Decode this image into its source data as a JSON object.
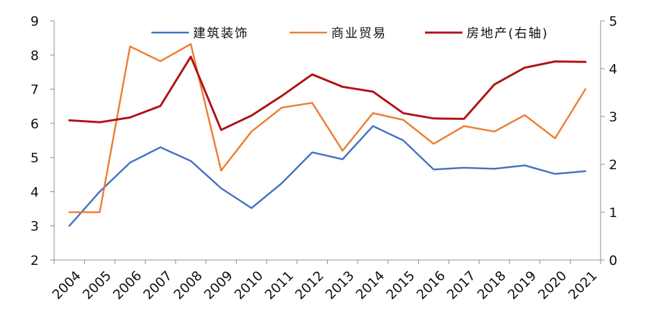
{
  "chart_data": {
    "type": "line",
    "x": [
      "2004",
      "2005",
      "2006",
      "2007",
      "2008",
      "2009",
      "2010",
      "2011",
      "2012",
      "2013",
      "2014",
      "2015",
      "2016",
      "2017",
      "2018",
      "2019",
      "2020",
      "2021"
    ],
    "series": [
      {
        "name": "建筑装饰",
        "axis": "left",
        "color": "#4472c4",
        "values": [
          3.0,
          4.0,
          4.85,
          5.3,
          4.9,
          4.1,
          3.52,
          4.25,
          5.15,
          4.95,
          5.92,
          5.5,
          4.65,
          4.7,
          4.67,
          4.77,
          4.52,
          4.6
        ]
      },
      {
        "name": "商业贸易",
        "axis": "left",
        "color": "#ed7d31",
        "values": [
          3.4,
          3.4,
          8.25,
          7.82,
          8.32,
          4.62,
          5.76,
          6.46,
          6.6,
          5.2,
          6.3,
          6.1,
          5.4,
          5.92,
          5.76,
          6.24,
          5.56,
          7.0
        ]
      },
      {
        "name": "房地产(右轴)",
        "axis": "right",
        "color": "#b01116",
        "values": [
          2.92,
          2.88,
          2.98,
          3.22,
          4.25,
          2.72,
          3.02,
          3.43,
          3.88,
          3.62,
          3.52,
          3.07,
          2.96,
          2.95,
          3.67,
          4.02,
          4.15,
          4.14
        ]
      }
    ],
    "left_axis": {
      "min": 2,
      "max": 9,
      "ticks": [
        2,
        3,
        4,
        5,
        6,
        7,
        8,
        9
      ]
    },
    "right_axis": {
      "min": 0,
      "max": 5,
      "ticks": [
        0,
        1,
        2,
        3,
        4,
        5
      ]
    },
    "legend": {
      "placement": "top-center"
    },
    "grid": false
  }
}
